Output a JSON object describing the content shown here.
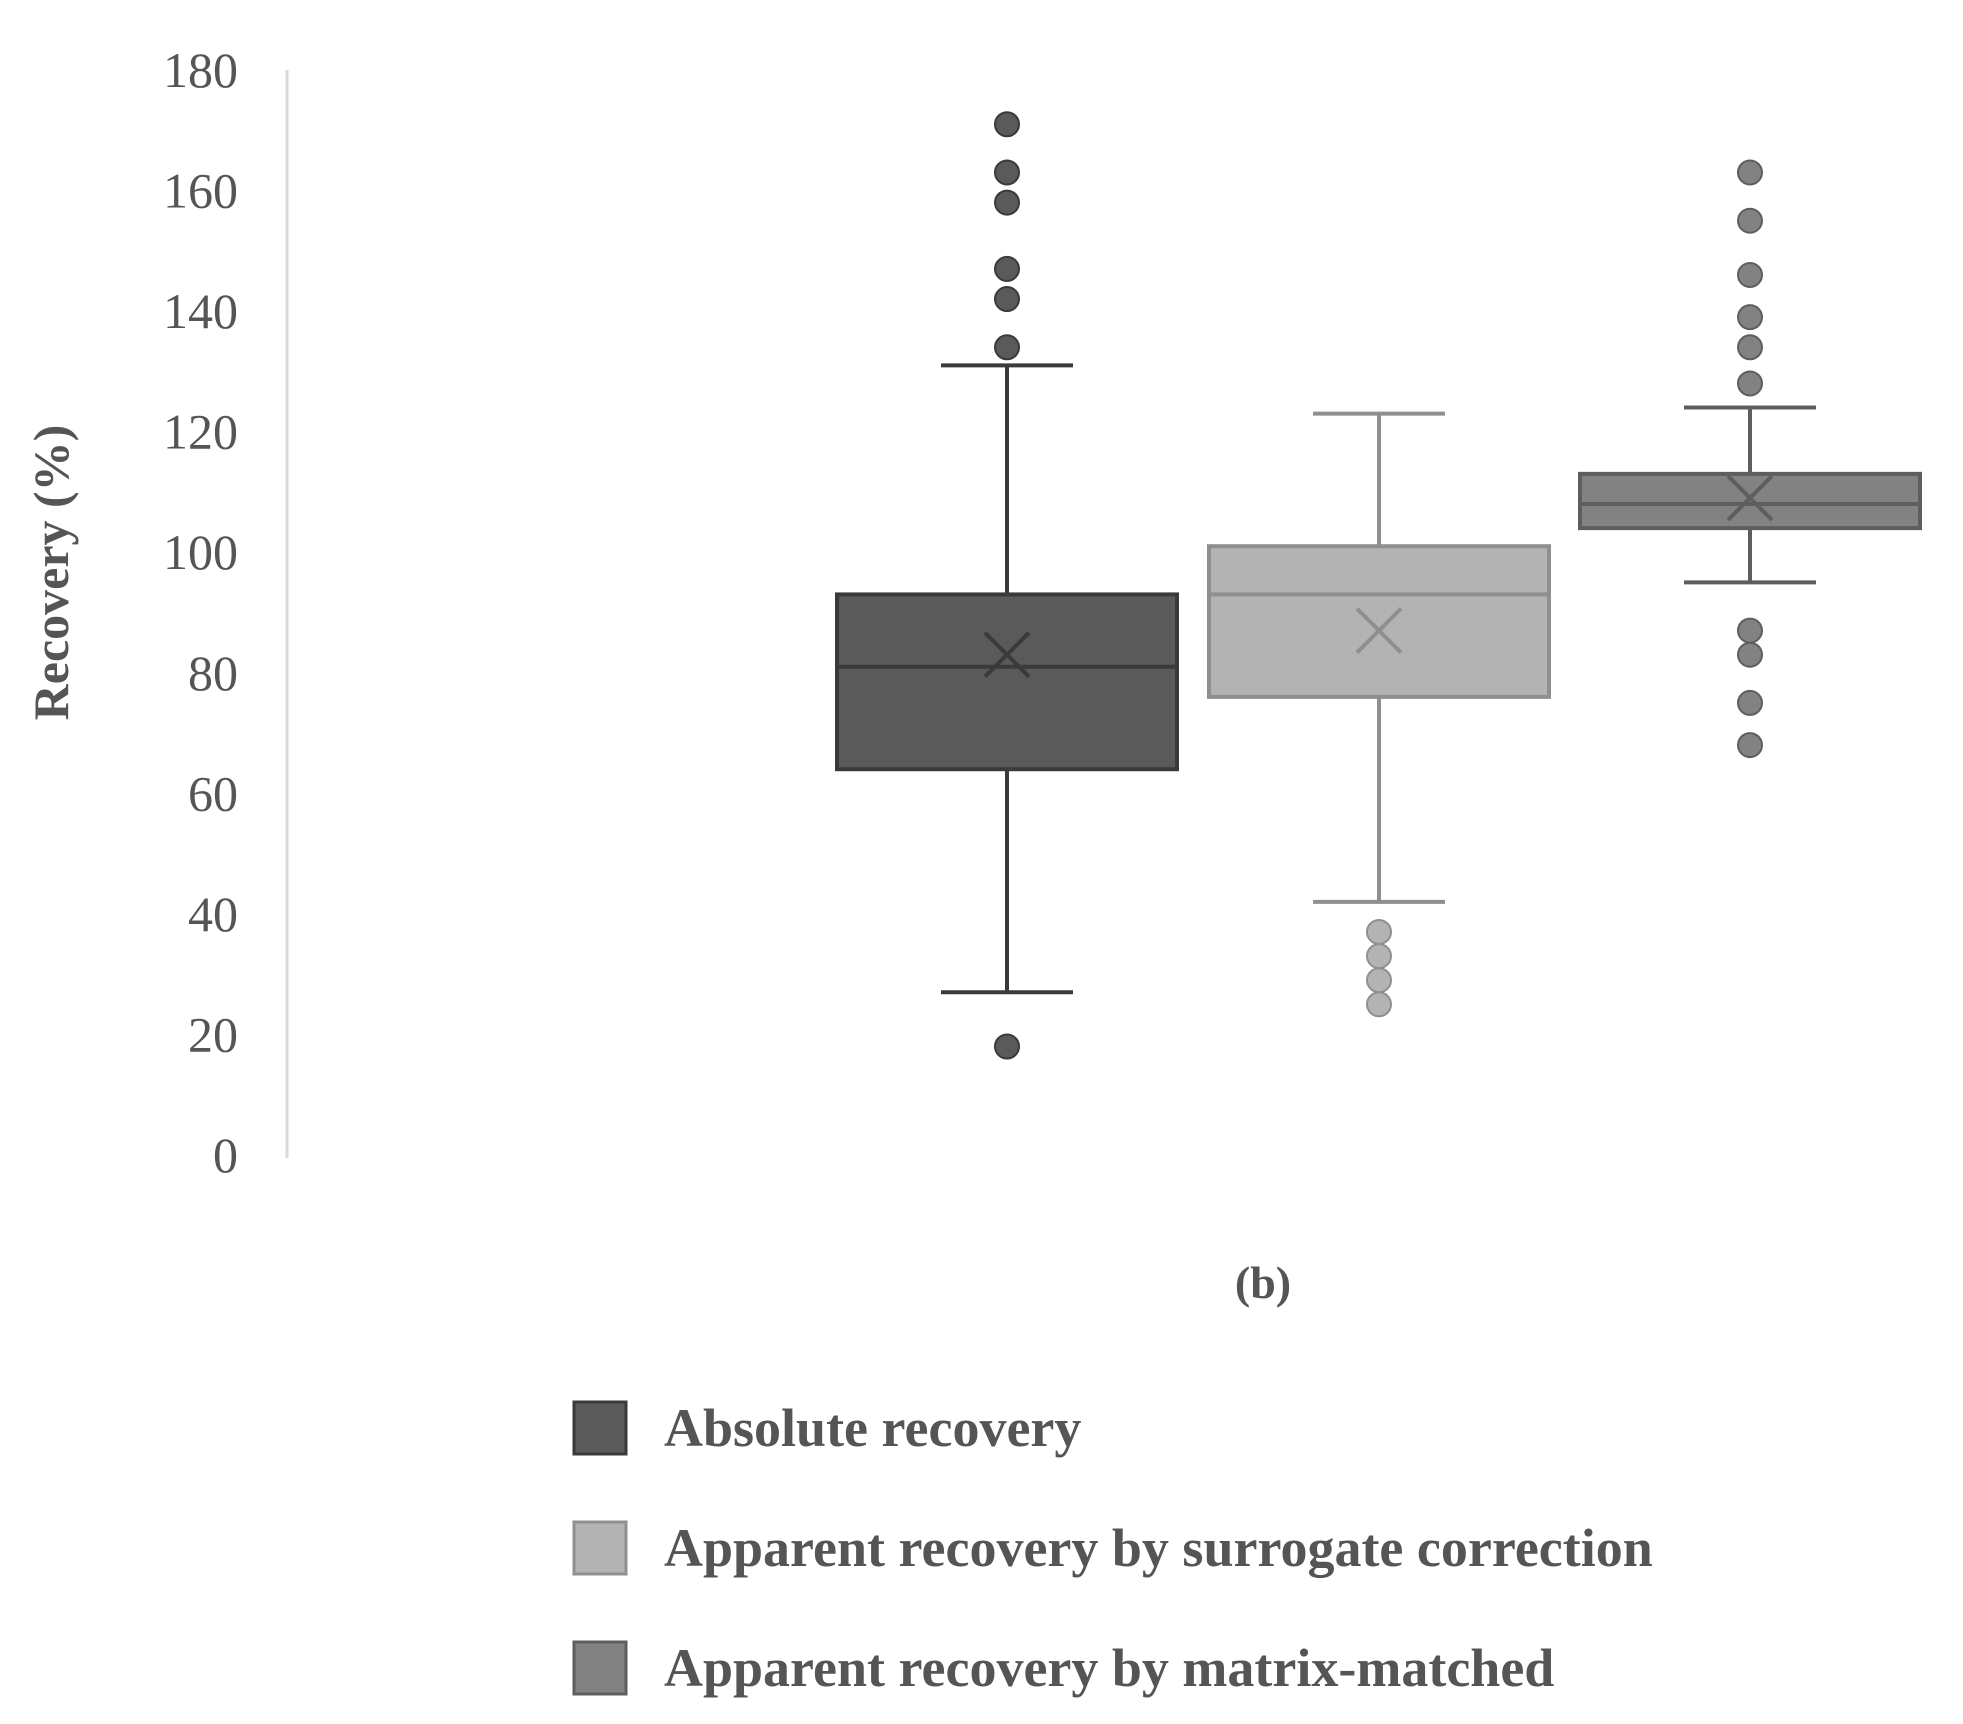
{
  "chart_data": {
    "type": "boxplot",
    "title": "",
    "panel_label": "(b)",
    "xlabel": "",
    "ylabel": "Recovery (%)",
    "ylim": [
      0,
      180
    ],
    "yticks": [
      0,
      20,
      40,
      60,
      80,
      100,
      120,
      140,
      160,
      180
    ],
    "grid": false,
    "legend_position": "bottom",
    "series": [
      {
        "name": "Absolute recovery",
        "color": "#5a5a5a",
        "line_color": "#3a3a3a",
        "min": 27,
        "q1": 64,
        "median": 81,
        "q3": 93,
        "max": 131,
        "mean": 83,
        "outliers": [
          171,
          163,
          158,
          147,
          142,
          134,
          18
        ]
      },
      {
        "name": "Apparent recovery by surrogate correction",
        "color": "#b3b3b3",
        "line_color": "#8f8f8f",
        "min": 42,
        "q1": 76,
        "median": 93,
        "q3": 101,
        "max": 123,
        "mean": 87,
        "outliers": [
          37,
          33,
          29,
          25
        ]
      },
      {
        "name": "Apparent recovery by matrix-matched",
        "color": "#828282",
        "line_color": "#5e5e5e",
        "min": 95,
        "q1": 104,
        "median": 108,
        "q3": 113,
        "max": 124,
        "mean": 109,
        "outliers": [
          163,
          155,
          146,
          139,
          134,
          128,
          87,
          83,
          75,
          68
        ]
      }
    ]
  }
}
